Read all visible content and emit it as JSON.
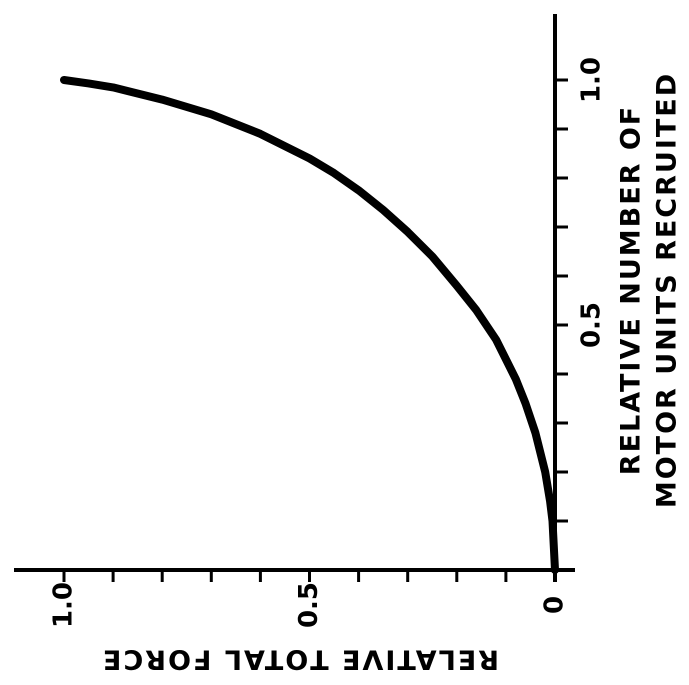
{
  "chart_data": {
    "type": "line",
    "xlabel": "RELATIVE TOTAL FORCE",
    "ylabel_lines": [
      "RELATIVE NUMBER OF",
      "MOTOR UNITS RECRUITED"
    ],
    "x_ticks": [
      "0",
      "0.5",
      "1.0"
    ],
    "y_ticks": [
      "0.5",
      "1.0"
    ],
    "xlim": [
      0,
      1.05
    ],
    "ylim": [
      0,
      1.1
    ],
    "grid": false,
    "series": [
      {
        "x": [
          0.0,
          0.005,
          0.01,
          0.02,
          0.04,
          0.06,
          0.08,
          0.12,
          0.16,
          0.2,
          0.25,
          0.3,
          0.35,
          0.4,
          0.45,
          0.5,
          0.6,
          0.7,
          0.8,
          0.9,
          0.95,
          1.0
        ],
        "y": [
          0.0,
          0.1,
          0.14,
          0.2,
          0.28,
          0.34,
          0.39,
          0.47,
          0.53,
          0.58,
          0.64,
          0.69,
          0.735,
          0.775,
          0.81,
          0.84,
          0.89,
          0.93,
          0.96,
          0.985,
          0.993,
          1.0
        ]
      }
    ],
    "color": "#000000"
  }
}
